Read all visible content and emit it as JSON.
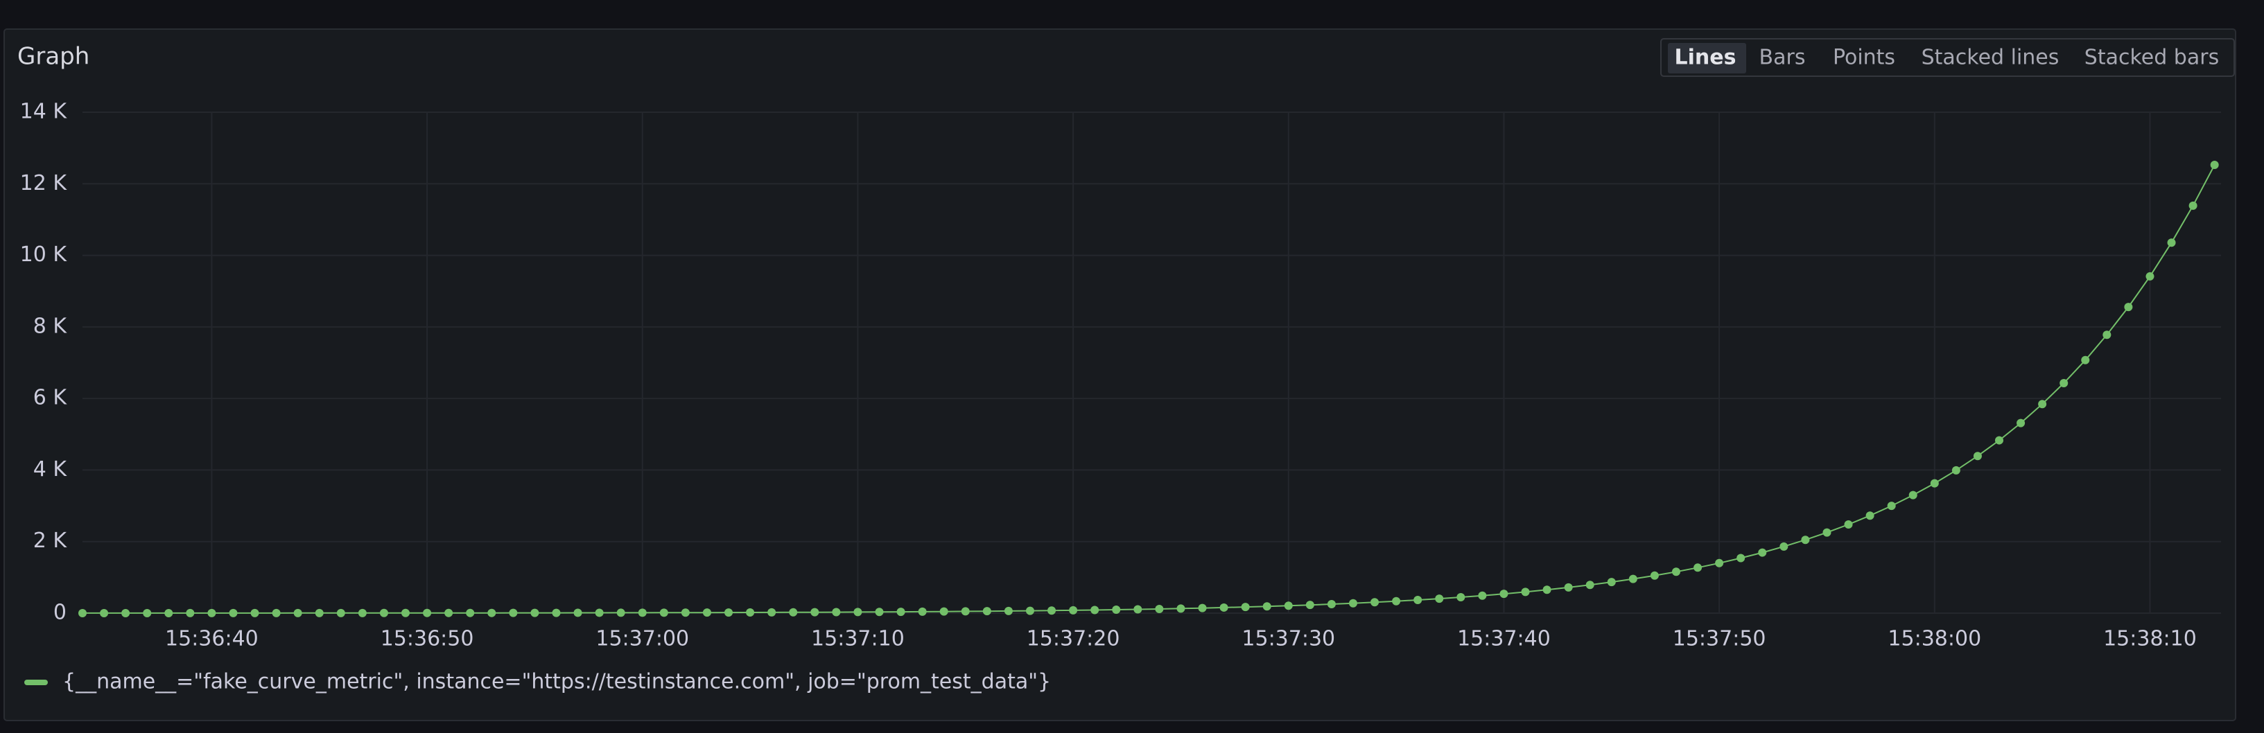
{
  "chart_data": {
    "type": "line",
    "title": "Graph",
    "view_buttons": [
      "Lines",
      "Bars",
      "Points",
      "Stacked lines",
      "Stacked bars"
    ],
    "active_view": "Lines",
    "x": [
      "15:36:34",
      "15:36:35",
      "15:36:36",
      "15:36:37",
      "15:36:38",
      "15:36:39",
      "15:36:40",
      "15:36:41",
      "15:36:42",
      "15:36:43",
      "15:36:44",
      "15:36:45",
      "15:36:46",
      "15:36:47",
      "15:36:48",
      "15:36:49",
      "15:36:50",
      "15:36:51",
      "15:36:52",
      "15:36:53",
      "15:36:54",
      "15:36:55",
      "15:36:56",
      "15:36:57",
      "15:36:58",
      "15:36:59",
      "15:37:00",
      "15:37:01",
      "15:37:02",
      "15:37:03",
      "15:37:04",
      "15:37:05",
      "15:37:06",
      "15:37:07",
      "15:37:08",
      "15:37:09",
      "15:37:10",
      "15:37:11",
      "15:37:12",
      "15:37:13",
      "15:37:14",
      "15:37:15",
      "15:37:16",
      "15:37:17",
      "15:37:18",
      "15:37:19",
      "15:37:20",
      "15:37:21",
      "15:37:22",
      "15:37:23",
      "15:37:24",
      "15:37:25",
      "15:37:26",
      "15:37:27",
      "15:37:28",
      "15:37:29",
      "15:37:30",
      "15:37:31",
      "15:37:32",
      "15:37:33",
      "15:37:34",
      "15:37:35",
      "15:37:36",
      "15:37:37",
      "15:37:38",
      "15:37:39",
      "15:37:40",
      "15:37:41",
      "15:37:42",
      "15:37:43",
      "15:37:44",
      "15:37:45",
      "15:37:46",
      "15:37:47",
      "15:37:48",
      "15:37:49",
      "15:37:50",
      "15:37:51",
      "15:37:52",
      "15:37:53",
      "15:37:54",
      "15:37:55",
      "15:37:56",
      "15:37:57",
      "15:37:58",
      "15:37:59",
      "15:38:00",
      "15:38:01",
      "15:38:02",
      "15:38:03",
      "15:38:04",
      "15:38:05",
      "15:38:06",
      "15:38:07",
      "15:38:08",
      "15:38:09",
      "15:38:10",
      "15:38:11",
      "15:38:12",
      "15:38:13"
    ],
    "series": [
      {
        "name": "{__name__=\"fake_curve_metric\", instance=\"https://testinstance.com\", job=\"prom_test_data\"}",
        "color": "#73bf69",
        "values": [
          1,
          1,
          1,
          1,
          1,
          2,
          2,
          2,
          2,
          2,
          3,
          3,
          3,
          3,
          4,
          4,
          5,
          5,
          6,
          6,
          7,
          7,
          8,
          9,
          10,
          11,
          12,
          13,
          14,
          16,
          17,
          19,
          21,
          23,
          26,
          28,
          31,
          34,
          37,
          41,
          45,
          50,
          55,
          60,
          66,
          73,
          80,
          88,
          97,
          107,
          117,
          129,
          142,
          156,
          172,
          189,
          208,
          229,
          252,
          277,
          304,
          335,
          368,
          405,
          446,
          490,
          539,
          593,
          653,
          718,
          790,
          869,
          956,
          1051,
          1156,
          1272,
          1399,
          1539,
          1693,
          1862,
          2048,
          2253,
          2479,
          2726,
          2999,
          3299,
          3629,
          3992,
          4391,
          4830,
          5313,
          5844,
          6429,
          7072,
          7779,
          8557,
          9412,
          10354,
          11389,
          12528
        ]
      }
    ],
    "xlim": [
      "15:36:34",
      "15:38:13"
    ],
    "xticks": [
      "15:36:40",
      "15:36:50",
      "15:37:00",
      "15:37:10",
      "15:37:20",
      "15:37:30",
      "15:37:40",
      "15:37:50",
      "15:38:00",
      "15:38:10"
    ],
    "ylim": [
      0,
      14000
    ],
    "yticks": [
      0,
      {
        "value": 2000,
        "label": "2 K"
      },
      {
        "value": 4000,
        "label": "4 K"
      },
      {
        "value": 6000,
        "label": "6 K"
      },
      {
        "value": 8000,
        "label": "8 K"
      },
      {
        "value": 10000,
        "label": "10 K"
      },
      {
        "value": 12000,
        "label": "12 K"
      },
      {
        "value": 14000,
        "label": "14 K"
      }
    ],
    "grid": true,
    "legend": "bottom"
  }
}
